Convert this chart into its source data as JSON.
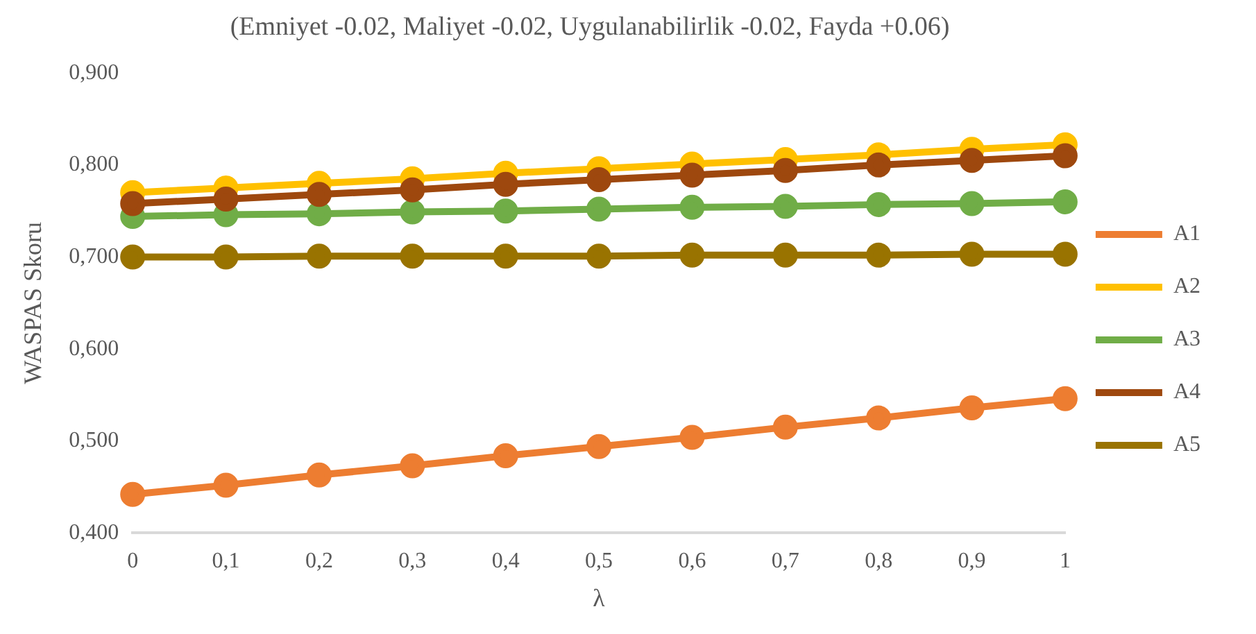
{
  "chart_data": {
    "type": "line",
    "title": "(Emniyet -0.02, Maliyet -0.02, Uygulanabilirlik -0.02, Fayda +0.06)",
    "xlabel": "λ",
    "ylabel": "WASPAS Skoru",
    "categories": [
      "0",
      "0,1",
      "0,2",
      "0,3",
      "0,4",
      "0,5",
      "0,6",
      "0,7",
      "0,8",
      "0,9",
      "1"
    ],
    "series": [
      {
        "name": "A1",
        "color": "#ed7d31",
        "values": [
          0.442,
          0.452,
          0.463,
          0.473,
          0.484,
          0.494,
          0.504,
          0.515,
          0.525,
          0.536,
          0.546
        ]
      },
      {
        "name": "A2",
        "color": "#ffc000",
        "values": [
          0.77,
          0.775,
          0.78,
          0.785,
          0.791,
          0.796,
          0.801,
          0.806,
          0.811,
          0.817,
          0.822
        ]
      },
      {
        "name": "A3",
        "color": "#70ad47",
        "values": [
          0.744,
          0.746,
          0.747,
          0.749,
          0.75,
          0.752,
          0.754,
          0.755,
          0.757,
          0.758,
          0.76
        ]
      },
      {
        "name": "A4",
        "color": "#9e480e",
        "values": [
          0.758,
          0.763,
          0.768,
          0.773,
          0.779,
          0.784,
          0.789,
          0.794,
          0.8,
          0.805,
          0.81
        ]
      },
      {
        "name": "A5",
        "color": "#997300",
        "values": [
          0.7,
          0.7,
          0.701,
          0.701,
          0.701,
          0.701,
          0.702,
          0.702,
          0.702,
          0.703,
          0.703
        ]
      }
    ],
    "ylim": [
      0.4,
      0.9
    ],
    "yticks": [
      {
        "value": 0.4,
        "label": "0,400"
      },
      {
        "value": 0.5,
        "label": "0,500"
      },
      {
        "value": 0.6,
        "label": "0,600"
      },
      {
        "value": 0.7,
        "label": "0,700"
      },
      {
        "value": 0.8,
        "label": "0,800"
      },
      {
        "value": 0.9,
        "label": "0,900"
      }
    ],
    "grid": false,
    "legend": "right",
    "marker": "circle",
    "line_style": "solid"
  }
}
